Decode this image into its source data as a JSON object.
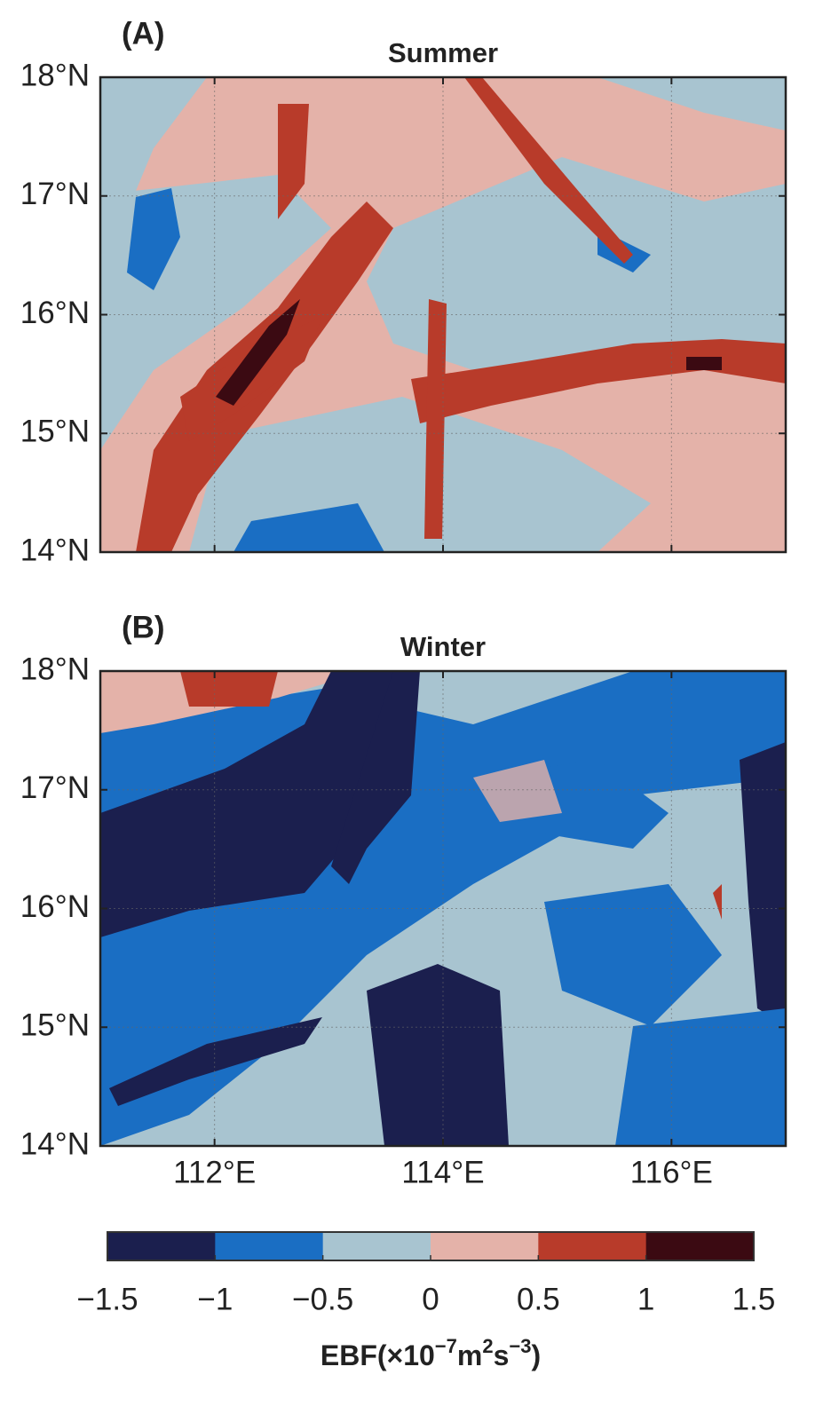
{
  "panels": [
    {
      "label": "(A)",
      "title": "Summer"
    },
    {
      "label": "(B)",
      "title": "Winter"
    }
  ],
  "xlim": [
    111,
    117
  ],
  "ylim": [
    14,
    18
  ],
  "lat_ticks": [
    {
      "value": 14,
      "label": "14°N"
    },
    {
      "value": 15,
      "label": "15°N"
    },
    {
      "value": 16,
      "label": "16°N"
    },
    {
      "value": 17,
      "label": "17°N"
    },
    {
      "value": 18,
      "label": "18°N"
    }
  ],
  "lon_ticks": [
    {
      "value": 112,
      "label": "112°E"
    },
    {
      "value": 114,
      "label": "114°E"
    },
    {
      "value": 116,
      "label": "116°E"
    }
  ],
  "colorbar": {
    "lim": [
      -1.5,
      1.5
    ],
    "colors": [
      "#1b1f4e",
      "#1a6ec3",
      "#a8c4d0",
      "#e4b2a9",
      "#b83b2a",
      "#3b0a12"
    ],
    "ticks": [
      {
        "value": -1.5,
        "label": "−1.5"
      },
      {
        "value": -1,
        "label": "−1"
      },
      {
        "value": -0.5,
        "label": "−0.5"
      },
      0,
      0.5,
      1,
      1.5
    ],
    "label_parts": [
      "EBF(×10",
      "−7",
      "m",
      "2",
      "s",
      "−3",
      ")"
    ]
  }
}
